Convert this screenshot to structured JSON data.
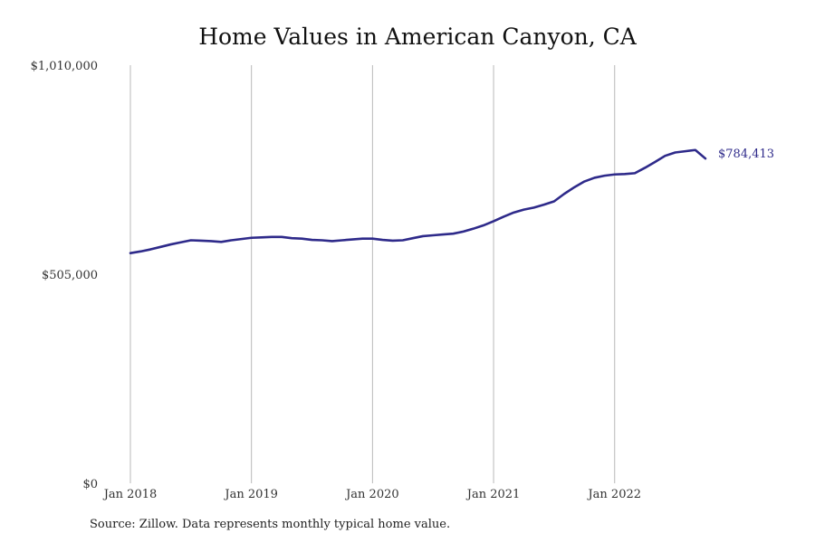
{
  "chart_data": {
    "type": "line",
    "title": "Home Values in American Canyon, CA",
    "xlabel": "",
    "ylabel": "",
    "x_tick_labels": [
      "Jan 2018",
      "Jan 2019",
      "Jan 2020",
      "Jan 2021",
      "Jan 2022"
    ],
    "y_tick_labels": [
      "$1,010,000",
      "$505,000",
      "$0"
    ],
    "y_ticks": [
      1010000,
      505000,
      0
    ],
    "ylim": [
      0,
      1010000
    ],
    "x_range": [
      "2018-01",
      "2022-10"
    ],
    "grid": "vertical",
    "legend": "none",
    "line_color": "#2e2a8a",
    "end_label": "$784,413",
    "series": [
      {
        "x": [
          "2018-01",
          "2018-02",
          "2018-03",
          "2018-04",
          "2018-05",
          "2018-06",
          "2018-07",
          "2018-08",
          "2018-09",
          "2018-10",
          "2018-11",
          "2018-12",
          "2019-01",
          "2019-02",
          "2019-03",
          "2019-04",
          "2019-05",
          "2019-06",
          "2019-07",
          "2019-08",
          "2019-09",
          "2019-10",
          "2019-11",
          "2019-12",
          "2020-01",
          "2020-02",
          "2020-03",
          "2020-04",
          "2020-05",
          "2020-06",
          "2020-07",
          "2020-08",
          "2020-09",
          "2020-10",
          "2020-11",
          "2020-12",
          "2021-01",
          "2021-02",
          "2021-03",
          "2021-04",
          "2021-05",
          "2021-06",
          "2021-07",
          "2021-08",
          "2021-09",
          "2021-10",
          "2021-11",
          "2021-12",
          "2022-01",
          "2022-02",
          "2022-03",
          "2022-04",
          "2022-05",
          "2022-06",
          "2022-07",
          "2022-08",
          "2022-09",
          "2022-10"
        ],
        "values": [
          556000,
          560000,
          565000,
          571000,
          577000,
          582000,
          587000,
          586000,
          585000,
          583000,
          587000,
          590000,
          593000,
          594000,
          595000,
          595000,
          592000,
          591000,
          588000,
          587000,
          585000,
          587000,
          589000,
          591000,
          591000,
          588000,
          586000,
          587000,
          592000,
          597000,
          599000,
          601000,
          603000,
          608000,
          615000,
          623000,
          633000,
          644000,
          654000,
          661000,
          666000,
          673000,
          681000,
          699000,
          715000,
          729000,
          738000,
          743000,
          746000,
          747000,
          749000,
          762000,
          776000,
          791000,
          799000,
          802000,
          805000,
          784413
        ]
      }
    ]
  },
  "footer": {
    "source": "Source: Zillow. Data represents monthly typical home value."
  }
}
